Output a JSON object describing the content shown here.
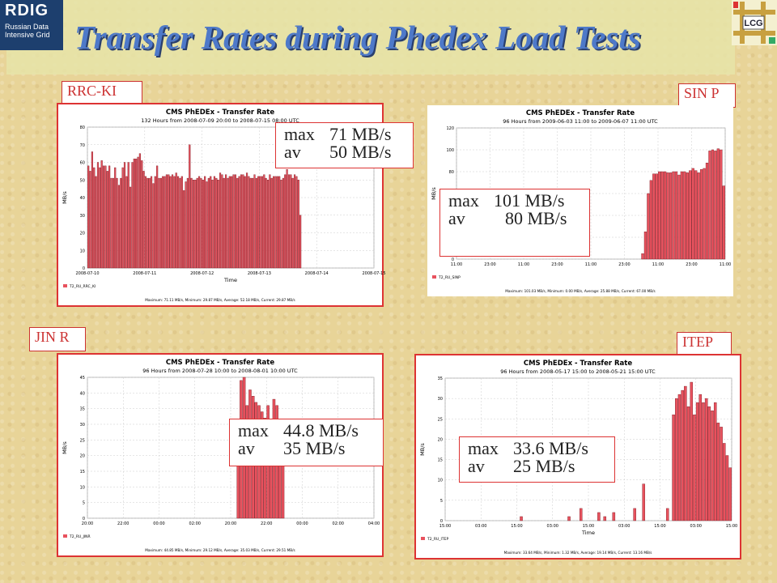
{
  "slide": {
    "title": "Transfer Rates during Phedex Load Tests",
    "logo_rdig": {
      "big": "RDIG",
      "line1": "Russian Data",
      "line2": "Intensive Grid"
    },
    "logo_lcg": "LCG"
  },
  "panels": [
    {
      "label": "RRC-KI",
      "ann": {
        "max_key": "max",
        "max_val": "71 MB/s",
        "av_key": "av",
        "av_val": "50 MB/s"
      }
    },
    {
      "label": "SIN P",
      "ann": {
        "max_key": "max",
        "max_val": "101 MB/s",
        "av_key": "av",
        "av_val": "80 MB/s"
      }
    },
    {
      "label": "JIN R",
      "ann": {
        "max_key": "max",
        "max_val": "44.8 MB/s",
        "av_key": "av",
        "av_val": "35 MB/s"
      }
    },
    {
      "label": "ITEP",
      "ann": {
        "max_key": "max",
        "max_val": "33.6 MB/s",
        "av_key": "av",
        "av_val": "25 MB/s"
      }
    }
  ],
  "chart_data": [
    {
      "type": "bar",
      "title": "CMS PhEDEx - Transfer Rate",
      "subtitle": "132 Hours from 2008-07-09 20:00 to 2008-07-15 08:00 UTC",
      "xlabel": "Time",
      "ylabel": "MB/s",
      "ylim": [
        0,
        80
      ],
      "yticks": [
        0,
        10,
        20,
        30,
        40,
        50,
        60,
        70,
        80
      ],
      "xticks": [
        "2008-07-10",
        "2008-07-11",
        "2008-07-12",
        "2008-07-13",
        "2008-07-14",
        "2008-07-15"
      ],
      "slot_count": 150,
      "bar_start": 0,
      "values": [
        58,
        55,
        66,
        57,
        52,
        60,
        57,
        61,
        58,
        58,
        55,
        58,
        51,
        51,
        57,
        51,
        47,
        51,
        57,
        60,
        52,
        60,
        46,
        60,
        62,
        62,
        63,
        65,
        61,
        55,
        52,
        51,
        51,
        52,
        48,
        52,
        58,
        51,
        51,
        52,
        52,
        53,
        53,
        52,
        53,
        52,
        54,
        52,
        51,
        52,
        44,
        49,
        51,
        70,
        51,
        50,
        50,
        51,
        52,
        51,
        50,
        52,
        49,
        51,
        52,
        50,
        52,
        51,
        50,
        54,
        53,
        51,
        53,
        51,
        52,
        52,
        53,
        53,
        51,
        52,
        53,
        53,
        52,
        54,
        52,
        51,
        51,
        53,
        51,
        52,
        52,
        52,
        53,
        51,
        50,
        53,
        51,
        52,
        52,
        52,
        52,
        50,
        51,
        53,
        56,
        53,
        53,
        51,
        53,
        52,
        50,
        30
      ],
      "series": [
        {
          "name": "T2_RU_RRC_KI",
          "color": "#e8525e"
        }
      ],
      "legend": "bottom-left",
      "footer": "Maximum: 71.11 MB/s, Minimum: 29.87 MB/s, Average: 52.18 MB/s, Current: 29.87 MB/s",
      "grid": true
    },
    {
      "type": "bar",
      "title": "CMS PhEDEx - Transfer Rate",
      "subtitle": "96 Hours from 2009-06-03 11:00 to 2009-06-07 11:00 UTC",
      "xlabel": "",
      "ylabel": "MB/s",
      "ylim": [
        0,
        120
      ],
      "yticks": [
        0,
        20,
        40,
        60,
        80,
        100,
        120
      ],
      "xticks": [
        "11:00",
        "23:00",
        "11:00",
        "23:00",
        "11:00",
        "23:00",
        "11:00",
        "23:00",
        "11:00"
      ],
      "slot_count": 96,
      "bar_start": 0,
      "values": [
        0,
        0,
        0,
        0,
        0,
        0,
        0,
        0,
        0,
        0,
        0,
        0,
        0,
        0,
        0,
        0,
        0,
        0,
        0,
        0,
        0,
        0,
        0,
        0,
        0,
        0,
        0,
        0,
        0,
        0,
        0,
        0,
        0,
        0,
        0,
        0,
        0,
        0,
        0,
        0,
        0,
        0,
        0,
        0,
        0,
        0,
        0,
        0,
        0,
        0,
        0,
        0,
        0,
        0,
        0,
        0,
        0,
        0,
        0,
        0,
        0,
        0,
        0,
        0,
        0,
        0,
        5,
        25,
        60,
        72,
        78,
        78,
        80,
        80,
        80,
        79,
        79,
        80,
        80,
        77,
        80,
        80,
        79,
        81,
        83,
        81,
        79,
        82,
        83,
        88,
        99,
        100,
        99,
        101,
        100,
        67
      ],
      "series": [
        {
          "name": "T2_RU_SINP",
          "color": "#e8525e"
        }
      ],
      "legend": "bottom-left",
      "footer": "Maximum: 101.03 MB/s, Minimum: 0.00 MB/s, Average: 25.88 MB/s, Current: 67.00 MB/s",
      "grid": true
    },
    {
      "type": "bar",
      "title": "CMS PhEDEx - Transfer Rate",
      "subtitle": "96 Hours from 2008-07-28 10:00 to 2008-08-01 10:00 UTC",
      "xlabel": "",
      "ylabel": "MB/s",
      "ylim": [
        0,
        45
      ],
      "yticks": [
        0,
        5,
        10,
        15,
        20,
        25,
        30,
        35,
        40,
        45
      ],
      "xticks": [
        "20:00",
        "22:00",
        "00:00",
        "02:00",
        "20:00",
        "22:00",
        "00:00",
        "02:00",
        "04:00"
      ],
      "slot_count": 96,
      "bar_start": 0,
      "values": [
        0,
        0,
        0,
        0,
        0,
        0,
        0,
        0,
        0,
        0,
        0,
        0,
        0,
        0,
        0,
        0,
        0,
        0,
        0,
        0,
        0,
        0,
        0,
        0,
        0,
        0,
        0,
        0,
        0,
        0,
        0,
        0,
        0,
        0,
        0,
        0,
        0,
        0,
        0,
        0,
        0,
        0,
        0,
        0,
        0,
        0,
        0,
        0,
        0,
        0,
        31,
        44,
        45,
        36,
        41,
        39,
        37,
        36,
        34,
        32,
        36,
        29,
        38,
        36,
        31,
        31,
        0,
        0,
        0,
        0,
        0,
        0,
        0,
        0,
        0,
        0,
        0,
        0,
        0,
        0,
        0,
        0,
        0,
        0,
        0,
        0,
        0,
        0,
        0,
        0,
        0,
        0,
        0,
        0,
        0,
        0
      ],
      "series": [
        {
          "name": "T2_RU_JINR",
          "color": "#e8525e"
        }
      ],
      "legend": "bottom-left",
      "footer": "Maximum: 44.85 MB/s, Minimum: 29.12 MB/s, Average: 35.03 MB/s, Current: 29.51 MB/s",
      "grid": true
    },
    {
      "type": "bar",
      "title": "CMS PhEDEx - Transfer Rate",
      "subtitle": "96 Hours from 2008-05-17 15:00 to 2008-05-21 15:00 UTC",
      "xlabel": "Time",
      "ylabel": "MB/s",
      "ylim": [
        0,
        35
      ],
      "yticks": [
        0,
        5,
        10,
        15,
        20,
        25,
        30,
        35
      ],
      "xticks": [
        "15:00",
        "03:00",
        "15:00",
        "03:00",
        "15:00",
        "03:00",
        "15:00",
        "03:00",
        "15:00"
      ],
      "slot_count": 96,
      "bar_start": 0,
      "values": [
        0,
        0,
        0,
        0,
        0,
        0,
        0,
        0,
        0,
        0,
        0,
        0,
        0,
        0,
        0,
        0,
        0,
        0,
        0,
        0,
        0,
        0,
        0,
        0,
        0,
        1,
        0,
        0,
        0,
        0,
        0,
        0,
        0,
        0,
        0,
        0,
        0,
        0,
        0,
        0,
        0,
        1,
        0,
        0,
        0,
        3,
        0,
        0,
        0,
        0,
        0,
        2,
        0,
        1,
        0,
        0,
        2,
        0,
        0,
        0,
        0,
        0,
        0,
        3,
        0,
        0,
        9,
        0,
        0,
        0,
        0,
        0,
        0,
        0,
        3,
        0,
        26,
        30,
        31,
        32,
        33,
        28,
        34,
        26,
        29,
        31,
        29,
        30,
        28,
        27,
        29,
        24,
        23,
        19,
        16,
        13
      ],
      "series": [
        {
          "name": "T2_RU_ITEP",
          "color": "#e8525e"
        }
      ],
      "legend": "bottom-left",
      "footer": "Maximum: 33.64 MB/s, Minimum: 1.32 MB/s, Average: 19.14 MB/s, Current: 13.16 MB/s",
      "grid": true
    }
  ]
}
